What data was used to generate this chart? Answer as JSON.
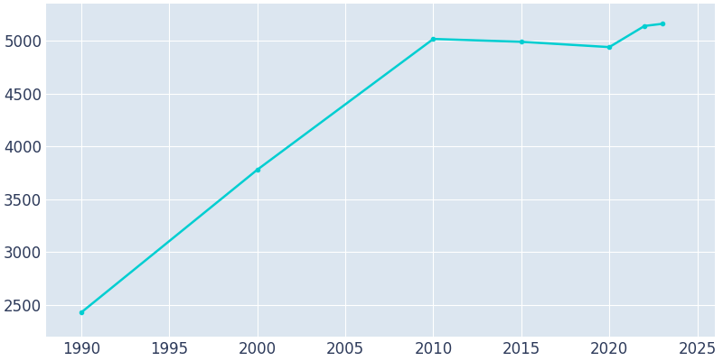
{
  "years": [
    1990,
    2000,
    2010,
    2015,
    2020,
    2022,
    2023
  ],
  "population": [
    2430,
    3780,
    5017,
    4990,
    4940,
    5140,
    5160
  ],
  "line_color": "#00CED1",
  "marker": "o",
  "marker_size": 3,
  "line_width": 1.8,
  "axes_background_color": "#DCE6F0",
  "figure_background_color": "#FFFFFF",
  "grid_color": "#FFFFFF",
  "xlim": [
    1988,
    2026
  ],
  "ylim": [
    2200,
    5350
  ],
  "xticks": [
    1990,
    1995,
    2000,
    2005,
    2010,
    2015,
    2020,
    2025
  ],
  "yticks": [
    2500,
    3000,
    3500,
    4000,
    4500,
    5000
  ],
  "tick_label_color": "#2D3A5A",
  "tick_fontsize": 12
}
